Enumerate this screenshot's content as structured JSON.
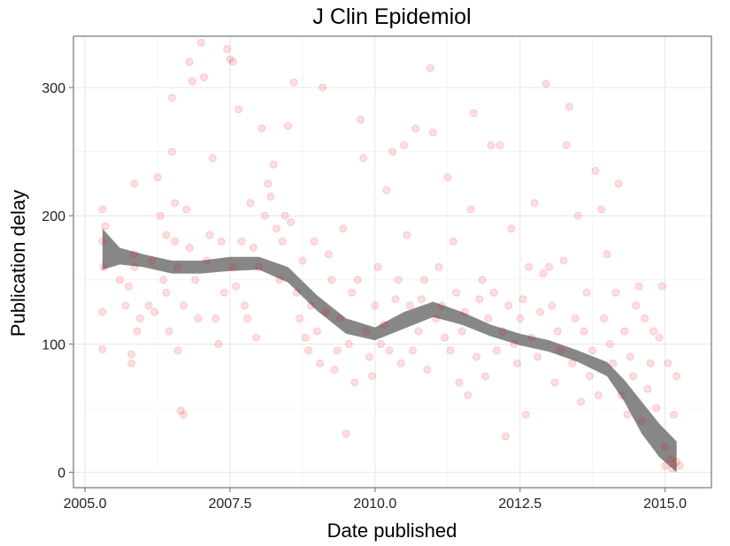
{
  "chart_data": {
    "type": "scatter",
    "title": "J Clin Epidemiol",
    "xlabel": "Date published",
    "ylabel": "Publication delay",
    "xlim": [
      2004.8,
      2015.8
    ],
    "ylim": [
      -12,
      340
    ],
    "x_ticks": [
      "2005.0",
      "2007.5",
      "2010.0",
      "2012.5",
      "2015.0"
    ],
    "x_tick_values": [
      2005.0,
      2007.5,
      2010.0,
      2012.5,
      2015.0
    ],
    "y_ticks": [
      "0",
      "100",
      "200",
      "300"
    ],
    "y_tick_values": [
      0,
      100,
      200,
      300
    ],
    "grid": true,
    "point_color": "#ff0000",
    "point_opacity": 0.13,
    "smooth_color": "#7a7a7a",
    "points": [
      [
        2005.3,
        205
      ],
      [
        2005.3,
        180
      ],
      [
        2005.32,
        160
      ],
      [
        2005.3,
        125
      ],
      [
        2005.3,
        96
      ],
      [
        2005.35,
        192
      ],
      [
        2005.6,
        150
      ],
      [
        2005.7,
        130
      ],
      [
        2005.75,
        145
      ],
      [
        2005.8,
        85
      ],
      [
        2005.8,
        92
      ],
      [
        2005.85,
        160
      ],
      [
        2005.85,
        170
      ],
      [
        2005.85,
        225
      ],
      [
        2005.9,
        110
      ],
      [
        2005.95,
        120
      ],
      [
        2006.1,
        130
      ],
      [
        2006.15,
        165
      ],
      [
        2006.2,
        125
      ],
      [
        2006.25,
        230
      ],
      [
        2006.3,
        200
      ],
      [
        2006.35,
        150
      ],
      [
        2006.4,
        185
      ],
      [
        2006.4,
        140
      ],
      [
        2006.45,
        110
      ],
      [
        2006.5,
        292
      ],
      [
        2006.5,
        250
      ],
      [
        2006.55,
        210
      ],
      [
        2006.55,
        180
      ],
      [
        2006.6,
        160
      ],
      [
        2006.6,
        95
      ],
      [
        2006.65,
        48
      ],
      [
        2006.7,
        45
      ],
      [
        2006.7,
        130
      ],
      [
        2006.75,
        205
      ],
      [
        2006.8,
        175
      ],
      [
        2006.8,
        320
      ],
      [
        2006.85,
        305
      ],
      [
        2006.9,
        150
      ],
      [
        2006.95,
        120
      ],
      [
        2007.0,
        335
      ],
      [
        2007.05,
        308
      ],
      [
        2007.1,
        165
      ],
      [
        2007.15,
        185
      ],
      [
        2007.2,
        245
      ],
      [
        2007.25,
        120
      ],
      [
        2007.3,
        100
      ],
      [
        2007.35,
        180
      ],
      [
        2007.4,
        140
      ],
      [
        2007.45,
        330
      ],
      [
        2007.5,
        322
      ],
      [
        2007.55,
        320
      ],
      [
        2007.55,
        160
      ],
      [
        2007.6,
        145
      ],
      [
        2007.65,
        283
      ],
      [
        2007.7,
        180
      ],
      [
        2007.75,
        130
      ],
      [
        2007.8,
        120
      ],
      [
        2007.85,
        210
      ],
      [
        2007.9,
        175
      ],
      [
        2007.95,
        105
      ],
      [
        2008.0,
        160
      ],
      [
        2008.05,
        268
      ],
      [
        2008.1,
        200
      ],
      [
        2008.15,
        225
      ],
      [
        2008.2,
        215
      ],
      [
        2008.25,
        240
      ],
      [
        2008.3,
        190
      ],
      [
        2008.35,
        150
      ],
      [
        2008.4,
        180
      ],
      [
        2008.45,
        200
      ],
      [
        2008.5,
        270
      ],
      [
        2008.55,
        195
      ],
      [
        2008.6,
        304
      ],
      [
        2008.65,
        140
      ],
      [
        2008.7,
        120
      ],
      [
        2008.75,
        165
      ],
      [
        2008.8,
        105
      ],
      [
        2008.85,
        95
      ],
      [
        2008.9,
        130
      ],
      [
        2008.95,
        180
      ],
      [
        2009.0,
        110
      ],
      [
        2009.05,
        85
      ],
      [
        2009.1,
        300
      ],
      [
        2009.15,
        125
      ],
      [
        2009.2,
        170
      ],
      [
        2009.25,
        150
      ],
      [
        2009.3,
        80
      ],
      [
        2009.35,
        95
      ],
      [
        2009.4,
        120
      ],
      [
        2009.45,
        190
      ],
      [
        2009.5,
        30
      ],
      [
        2009.55,
        100
      ],
      [
        2009.6,
        140
      ],
      [
        2009.65,
        70
      ],
      [
        2009.7,
        150
      ],
      [
        2009.75,
        275
      ],
      [
        2009.8,
        245
      ],
      [
        2009.85,
        110
      ],
      [
        2009.9,
        90
      ],
      [
        2009.95,
        75
      ],
      [
        2010.0,
        130
      ],
      [
        2010.05,
        160
      ],
      [
        2010.1,
        100
      ],
      [
        2010.15,
        115
      ],
      [
        2010.2,
        220
      ],
      [
        2010.25,
        95
      ],
      [
        2010.3,
        250
      ],
      [
        2010.35,
        135
      ],
      [
        2010.4,
        150
      ],
      [
        2010.45,
        85
      ],
      [
        2010.5,
        255
      ],
      [
        2010.55,
        185
      ],
      [
        2010.6,
        130
      ],
      [
        2010.65,
        95
      ],
      [
        2010.7,
        268
      ],
      [
        2010.75,
        110
      ],
      [
        2010.8,
        135
      ],
      [
        2010.85,
        150
      ],
      [
        2010.9,
        80
      ],
      [
        2010.95,
        315
      ],
      [
        2011.0,
        265
      ],
      [
        2011.05,
        120
      ],
      [
        2011.1,
        160
      ],
      [
        2011.15,
        130
      ],
      [
        2011.2,
        105
      ],
      [
        2011.25,
        230
      ],
      [
        2011.3,
        95
      ],
      [
        2011.35,
        180
      ],
      [
        2011.4,
        140
      ],
      [
        2011.45,
        70
      ],
      [
        2011.5,
        110
      ],
      [
        2011.55,
        125
      ],
      [
        2011.6,
        60
      ],
      [
        2011.65,
        205
      ],
      [
        2011.7,
        280
      ],
      [
        2011.75,
        90
      ],
      [
        2011.8,
        135
      ],
      [
        2011.85,
        150
      ],
      [
        2011.9,
        75
      ],
      [
        2011.95,
        120
      ],
      [
        2012.0,
        255
      ],
      [
        2012.05,
        140
      ],
      [
        2012.1,
        95
      ],
      [
        2012.15,
        255
      ],
      [
        2012.2,
        110
      ],
      [
        2012.25,
        28
      ],
      [
        2012.3,
        130
      ],
      [
        2012.35,
        190
      ],
      [
        2012.4,
        100
      ],
      [
        2012.45,
        85
      ],
      [
        2012.5,
        120
      ],
      [
        2012.55,
        135
      ],
      [
        2012.6,
        45
      ],
      [
        2012.65,
        160
      ],
      [
        2012.7,
        105
      ],
      [
        2012.75,
        210
      ],
      [
        2012.8,
        90
      ],
      [
        2012.85,
        125
      ],
      [
        2012.9,
        155
      ],
      [
        2012.95,
        303
      ],
      [
        2013.0,
        160
      ],
      [
        2013.05,
        130
      ],
      [
        2013.1,
        70
      ],
      [
        2013.15,
        110
      ],
      [
        2013.2,
        95
      ],
      [
        2013.25,
        165
      ],
      [
        2013.3,
        255
      ],
      [
        2013.35,
        285
      ],
      [
        2013.4,
        85
      ],
      [
        2013.45,
        120
      ],
      [
        2013.5,
        200
      ],
      [
        2013.55,
        55
      ],
      [
        2013.6,
        110
      ],
      [
        2013.65,
        140
      ],
      [
        2013.7,
        75
      ],
      [
        2013.75,
        95
      ],
      [
        2013.8,
        235
      ],
      [
        2013.85,
        60
      ],
      [
        2013.9,
        205
      ],
      [
        2013.95,
        120
      ],
      [
        2014.0,
        170
      ],
      [
        2014.05,
        100
      ],
      [
        2014.1,
        85
      ],
      [
        2014.15,
        140
      ],
      [
        2014.2,
        225
      ],
      [
        2014.25,
        60
      ],
      [
        2014.3,
        110
      ],
      [
        2014.35,
        45
      ],
      [
        2014.4,
        90
      ],
      [
        2014.45,
        75
      ],
      [
        2014.5,
        130
      ],
      [
        2014.55,
        145
      ],
      [
        2014.6,
        40
      ],
      [
        2014.65,
        120
      ],
      [
        2014.7,
        65
      ],
      [
        2014.75,
        85
      ],
      [
        2014.8,
        110
      ],
      [
        2014.85,
        50
      ],
      [
        2014.9,
        105
      ],
      [
        2014.95,
        145
      ],
      [
        2015.0,
        20
      ],
      [
        2015.0,
        5
      ],
      [
        2015.05,
        85
      ],
      [
        2015.1,
        10
      ],
      [
        2015.12,
        3
      ],
      [
        2015.15,
        45
      ],
      [
        2015.2,
        75
      ],
      [
        2015.2,
        8
      ],
      [
        2015.25,
        5
      ]
    ],
    "smooth_upper": [
      [
        2005.3,
        190
      ],
      [
        2005.6,
        175
      ],
      [
        2006.0,
        170
      ],
      [
        2006.5,
        165
      ],
      [
        2007.0,
        165
      ],
      [
        2007.5,
        168
      ],
      [
        2008.0,
        168
      ],
      [
        2008.5,
        160
      ],
      [
        2009.0,
        138
      ],
      [
        2009.5,
        120
      ],
      [
        2010.0,
        113
      ],
      [
        2010.5,
        125
      ],
      [
        2011.0,
        133
      ],
      [
        2011.5,
        125
      ],
      [
        2012.0,
        115
      ],
      [
        2012.5,
        108
      ],
      [
        2013.0,
        103
      ],
      [
        2013.5,
        95
      ],
      [
        2014.0,
        86
      ],
      [
        2014.3,
        72
      ],
      [
        2014.6,
        55
      ],
      [
        2014.9,
        38
      ],
      [
        2015.2,
        24
      ]
    ],
    "smooth_lower": [
      [
        2005.3,
        158
      ],
      [
        2005.6,
        162
      ],
      [
        2006.0,
        160
      ],
      [
        2006.5,
        155
      ],
      [
        2007.0,
        155
      ],
      [
        2007.5,
        157
      ],
      [
        2008.0,
        158
      ],
      [
        2008.5,
        148
      ],
      [
        2009.0,
        126
      ],
      [
        2009.5,
        108
      ],
      [
        2010.0,
        103
      ],
      [
        2010.5,
        112
      ],
      [
        2011.0,
        121
      ],
      [
        2011.5,
        115
      ],
      [
        2012.0,
        106
      ],
      [
        2012.5,
        99
      ],
      [
        2013.0,
        94
      ],
      [
        2013.5,
        86
      ],
      [
        2014.0,
        75
      ],
      [
        2014.3,
        55
      ],
      [
        2014.6,
        30
      ],
      [
        2014.9,
        12
      ],
      [
        2015.2,
        0
      ]
    ]
  }
}
